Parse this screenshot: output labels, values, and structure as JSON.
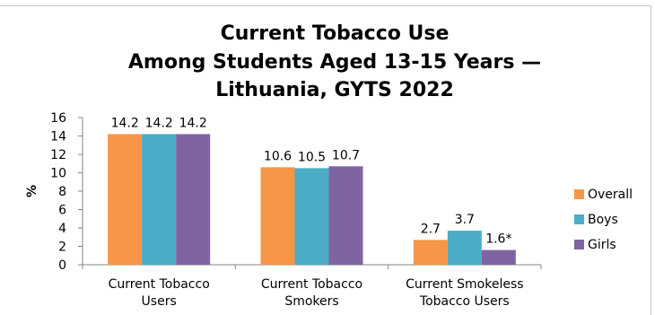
{
  "chart_data": {
    "type": "bar",
    "title_lines": [
      "Current Tobacco Use",
      "Among Students Aged 13-15 Years —",
      "Lithuania, GYTS 2022"
    ],
    "ylabel": "%",
    "xlabel": "",
    "ylim": [
      0,
      16
    ],
    "yticks": [
      0,
      2,
      4,
      6,
      8,
      10,
      12,
      14,
      16
    ],
    "categories": [
      [
        "Current Tobacco",
        "Users"
      ],
      [
        "Current Tobacco",
        "Smokers"
      ],
      [
        "Current Smokeless",
        "Tobacco Users"
      ]
    ],
    "series": [
      {
        "name": "Overall",
        "color": "#f79646",
        "values": [
          14.2,
          10.6,
          2.7
        ],
        "labels": [
          "14.2",
          "10.6",
          "2.7"
        ]
      },
      {
        "name": "Boys",
        "color": "#4bacc6",
        "values": [
          14.2,
          10.5,
          3.7
        ],
        "labels": [
          "14.2",
          "10.5",
          "3.7"
        ]
      },
      {
        "name": "Girls",
        "color": "#8064a2",
        "values": [
          14.2,
          10.7,
          1.6
        ],
        "labels": [
          "14.2",
          "10.7",
          "1.6*"
        ]
      }
    ],
    "legend_position": "right",
    "grid": false
  }
}
